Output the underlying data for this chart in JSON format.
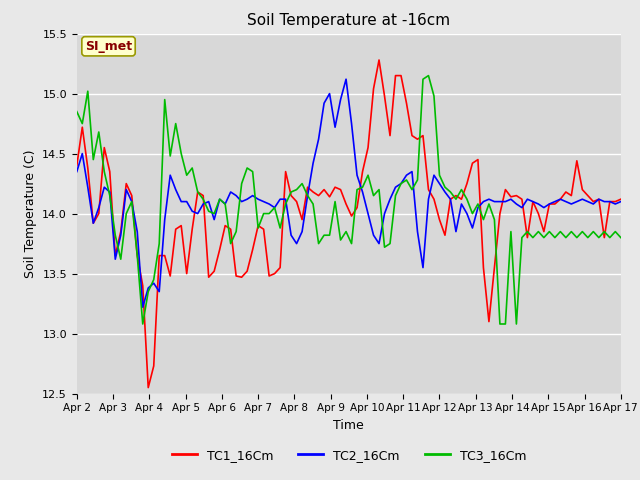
{
  "title": "Soil Temperature at -16cm",
  "xlabel": "Time",
  "ylabel": "Soil Temperature (C)",
  "ylim": [
    12.5,
    15.5
  ],
  "background_color": "#e8e8e8",
  "plot_bg_color": "#d8d8d8",
  "grid_color": "#ffffff",
  "annotation_text": "SI_met",
  "annotation_bg": "#ffffcc",
  "annotation_border": "#999900",
  "annotation_text_color": "#880000",
  "legend_line_color_1": "#ff0000",
  "legend_line_color_2": "#0000ff",
  "legend_line_color_3": "#00bb00",
  "legend_label_1": "TC1_16Cm",
  "legend_label_2": "TC2_16Cm",
  "legend_label_3": "TC3_16Cm",
  "xtick_labels": [
    "Apr 2",
    "Apr 3",
    "Apr 4",
    "Apr 5",
    "Apr 6",
    "Apr 7",
    "Apr 8",
    "Apr 9",
    "Apr 10",
    "Apr 11",
    "Apr 12",
    "Apr 13",
    "Apr 14",
    "Apr 15",
    "Apr 16",
    "Apr 17"
  ],
  "TC1_16Cm": [
    14.4,
    14.72,
    14.38,
    13.92,
    14.0,
    14.55,
    14.35,
    13.65,
    13.85,
    14.25,
    14.15,
    13.65,
    13.4,
    12.55,
    12.73,
    13.65,
    13.65,
    13.48,
    13.87,
    13.9,
    13.5,
    13.87,
    14.18,
    14.15,
    13.47,
    13.52,
    13.7,
    13.9,
    13.87,
    13.48,
    13.47,
    13.52,
    13.7,
    13.9,
    13.87,
    13.48,
    13.5,
    13.55,
    14.35,
    14.15,
    14.1,
    13.95,
    14.22,
    14.18,
    14.15,
    14.2,
    14.14,
    14.22,
    14.2,
    14.08,
    13.98,
    14.05,
    14.35,
    14.55,
    15.04,
    15.28,
    14.98,
    14.65,
    15.15,
    15.15,
    14.92,
    14.65,
    14.62,
    14.65,
    14.2,
    14.12,
    13.95,
    13.82,
    14.12,
    14.15,
    14.12,
    14.25,
    14.42,
    14.45,
    13.55,
    13.1,
    13.55,
    14.0,
    14.2,
    14.14,
    14.15,
    14.12,
    13.8,
    14.1,
    14.0,
    13.85,
    14.08,
    14.08,
    14.12,
    14.18,
    14.15,
    14.44,
    14.2,
    14.15,
    14.1,
    14.12,
    13.8,
    14.1,
    14.1,
    14.12
  ],
  "TC2_16Cm": [
    14.35,
    14.5,
    14.22,
    13.92,
    14.05,
    14.22,
    14.18,
    13.62,
    13.82,
    14.2,
    14.1,
    13.85,
    13.22,
    13.38,
    13.42,
    13.35,
    13.95,
    14.32,
    14.2,
    14.1,
    14.1,
    14.02,
    14.0,
    14.08,
    14.1,
    13.95,
    14.12,
    14.08,
    14.18,
    14.15,
    14.1,
    14.12,
    14.15,
    14.12,
    14.1,
    14.08,
    14.05,
    14.12,
    14.12,
    13.82,
    13.75,
    13.85,
    14.15,
    14.42,
    14.62,
    14.92,
    15.0,
    14.72,
    14.95,
    15.12,
    14.75,
    14.32,
    14.18,
    14.0,
    13.82,
    13.75,
    14.0,
    14.12,
    14.22,
    14.25,
    14.32,
    14.35,
    13.85,
    13.55,
    14.12,
    14.32,
    14.25,
    14.18,
    14.12,
    13.85,
    14.08,
    14.0,
    13.88,
    14.05,
    14.1,
    14.12,
    14.1,
    14.1,
    14.1,
    14.12,
    14.08,
    14.05,
    14.12,
    14.1,
    14.08,
    14.05,
    14.08,
    14.1,
    14.12,
    14.1,
    14.08,
    14.1,
    14.12,
    14.1,
    14.08,
    14.12,
    14.1,
    14.1,
    14.08,
    14.1
  ],
  "TC3_16Cm": [
    14.85,
    14.75,
    15.02,
    14.45,
    14.68,
    14.35,
    14.15,
    13.82,
    13.62,
    14.0,
    14.1,
    13.65,
    13.08,
    13.35,
    13.45,
    13.75,
    14.95,
    14.48,
    14.75,
    14.5,
    14.32,
    14.38,
    14.18,
    14.12,
    14.02,
    14.0,
    14.12,
    14.08,
    13.75,
    13.85,
    14.25,
    14.38,
    14.35,
    13.88,
    14.0,
    14.0,
    14.05,
    13.88,
    14.08,
    14.18,
    14.2,
    14.25,
    14.15,
    14.08,
    13.75,
    13.82,
    13.82,
    14.1,
    13.78,
    13.85,
    13.75,
    14.2,
    14.22,
    14.32,
    14.15,
    14.2,
    13.72,
    13.75,
    14.15,
    14.25,
    14.28,
    14.2,
    14.28,
    15.12,
    15.15,
    14.98,
    14.32,
    14.22,
    14.18,
    14.12,
    14.2,
    14.12,
    14.0,
    14.08,
    13.95,
    14.08,
    13.95,
    13.08,
    13.08,
    13.85,
    13.08,
    13.8,
    13.85,
    13.8,
    13.85,
    13.8,
    13.85,
    13.8,
    13.85,
    13.8,
    13.85,
    13.8,
    13.85,
    13.8,
    13.85,
    13.8,
    13.85,
    13.8,
    13.85,
    13.8
  ]
}
